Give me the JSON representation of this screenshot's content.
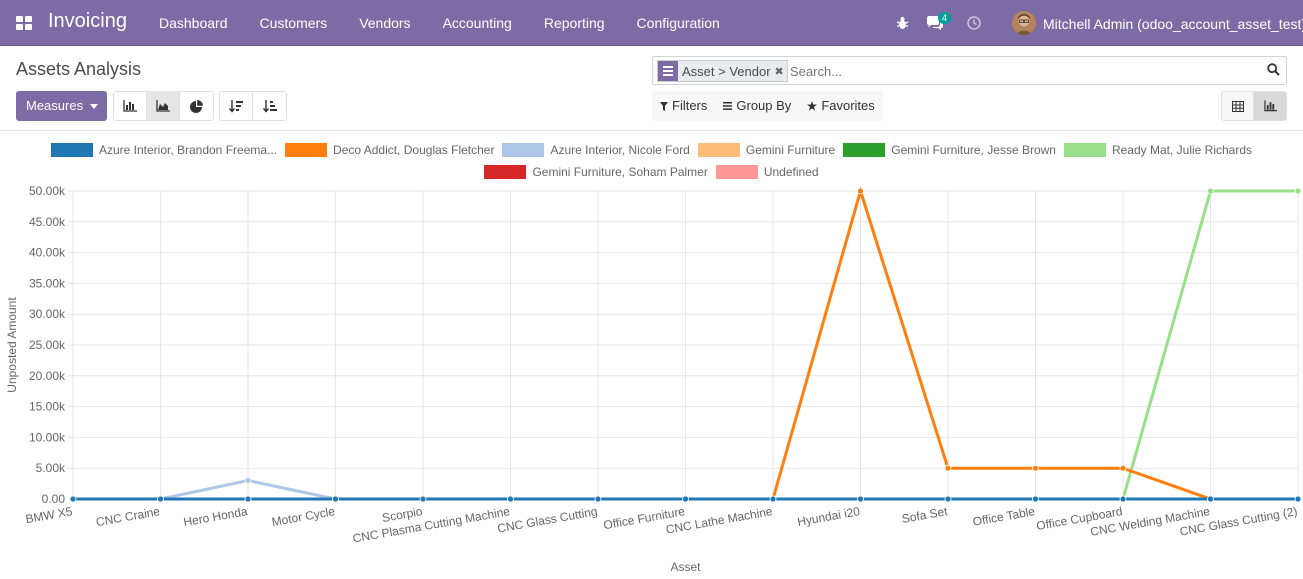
{
  "app": {
    "title": "Invoicing",
    "menu": [
      "Dashboard",
      "Customers",
      "Vendors",
      "Accounting",
      "Reporting",
      "Configuration"
    ],
    "messages_count": "4",
    "user": "Mitchell Admin (odoo_account_asset_test)"
  },
  "control_panel": {
    "title": "Assets Analysis",
    "measures_label": "Measures",
    "facet_label": "Asset > Vendor",
    "search_placeholder": "Search...",
    "filters_label": "Filters",
    "groupby_label": "Group By",
    "favorites_label": "Favorites"
  },
  "colors": {
    "brand": "#7c6ba4",
    "badge": "#00a09d"
  },
  "chart_data": {
    "type": "line",
    "xlabel": "Asset",
    "ylabel": "Unposted Amount",
    "ylim": [
      0,
      50000
    ],
    "ytick_labels": [
      "0.00",
      "5.00k",
      "10.00k",
      "15.00k",
      "20.00k",
      "25.00k",
      "30.00k",
      "35.00k",
      "40.00k",
      "45.00k",
      "50.00k"
    ],
    "grid": true,
    "legend_placement": "top",
    "categories": [
      "BMW X5",
      "CNC Craine",
      "Hero Honda",
      "Motor Cycle",
      "Scorpio",
      "CNC Plasma Cutting Machine",
      "CNC Glass Cutting",
      "Office Furniture",
      "CNC Lathe Machine",
      "Hyundai i20",
      "Sofa Set",
      "Office Table",
      "Office Cupboard",
      "CNC Welding Machine",
      "CNC Glass Cutting (2)"
    ],
    "series": [
      {
        "name": "Azure Interior, Brandon Freema...",
        "color": "#1f77b4",
        "values": [
          0,
          0,
          0,
          0,
          0,
          0,
          0,
          0,
          0,
          0,
          0,
          0,
          0,
          0,
          0
        ]
      },
      {
        "name": "Deco Addict, Douglas Fletcher",
        "color": "#ff7f0e",
        "values": [
          0,
          0,
          0,
          0,
          0,
          0,
          0,
          0,
          0,
          50000,
          5000,
          5000,
          5000,
          0,
          0
        ]
      },
      {
        "name": "Azure Interior, Nicole Ford",
        "color": "#aec7e8",
        "values": [
          0,
          0,
          3000,
          0,
          0,
          0,
          0,
          0,
          0,
          0,
          0,
          0,
          0,
          0,
          0
        ]
      },
      {
        "name": "Gemini Furniture",
        "color": "#ffbb78",
        "values": [
          0,
          0,
          0,
          0,
          0,
          0,
          0,
          0,
          0,
          0,
          0,
          0,
          0,
          0,
          0
        ]
      },
      {
        "name": "Gemini Furniture, Jesse Brown",
        "color": "#2ca02c",
        "values": [
          0,
          0,
          0,
          0,
          0,
          0,
          0,
          0,
          0,
          0,
          0,
          0,
          0,
          0,
          0
        ]
      },
      {
        "name": "Ready Mat, Julie Richards",
        "color": "#98df8a",
        "values": [
          0,
          0,
          0,
          0,
          0,
          0,
          0,
          0,
          0,
          0,
          0,
          0,
          0,
          50000,
          50000
        ]
      },
      {
        "name": "Gemini Furniture, Soham Palmer",
        "color": "#d62728",
        "values": [
          0,
          0,
          0,
          0,
          0,
          0,
          0,
          0,
          0,
          0,
          0,
          0,
          0,
          0,
          0
        ]
      },
      {
        "name": "Undefined",
        "color": "#ff9896",
        "values": [
          0,
          0,
          0,
          0,
          0,
          0,
          0,
          0,
          0,
          0,
          0,
          0,
          0,
          0,
          0
        ]
      }
    ]
  }
}
